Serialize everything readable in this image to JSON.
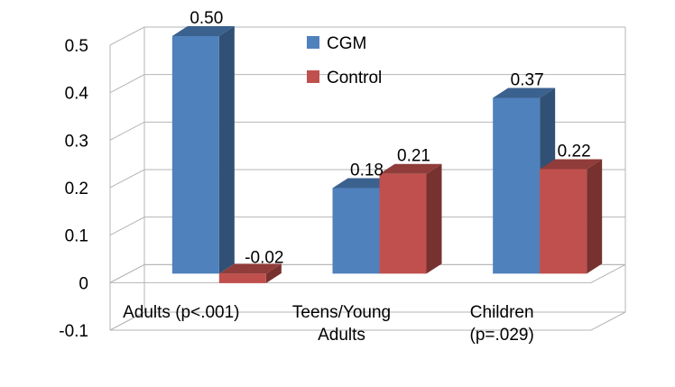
{
  "chart_data": {
    "type": "bar",
    "style": "3d-clustered-column",
    "title": "",
    "xlabel": "",
    "ylabel": "",
    "categories": [
      [
        "Adults (p<.001)"
      ],
      [
        "Teens/Young",
        "Adults"
      ],
      [
        "Children",
        "(p=.029)"
      ]
    ],
    "series": [
      {
        "name": "CGM",
        "color": "#4f81bd",
        "values": [
          0.5,
          0.18,
          0.37
        ],
        "labels": [
          "0.50",
          "0.18",
          "0.37"
        ]
      },
      {
        "name": "Control",
        "color": "#c0504d",
        "values": [
          -0.02,
          0.21,
          0.22
        ],
        "labels": [
          "-0.02",
          "0.21",
          "0.22"
        ]
      }
    ],
    "ylim": [
      -0.1,
      0.5
    ],
    "yticks": [
      -0.1,
      0,
      0.1,
      0.2,
      0.3,
      0.4,
      0.5
    ],
    "ytick_labels": [
      "-0.1",
      "0",
      "0.1",
      "0.2",
      "0.3",
      "0.4",
      "0.5"
    ],
    "grid": true,
    "legend_position": "top-center"
  }
}
